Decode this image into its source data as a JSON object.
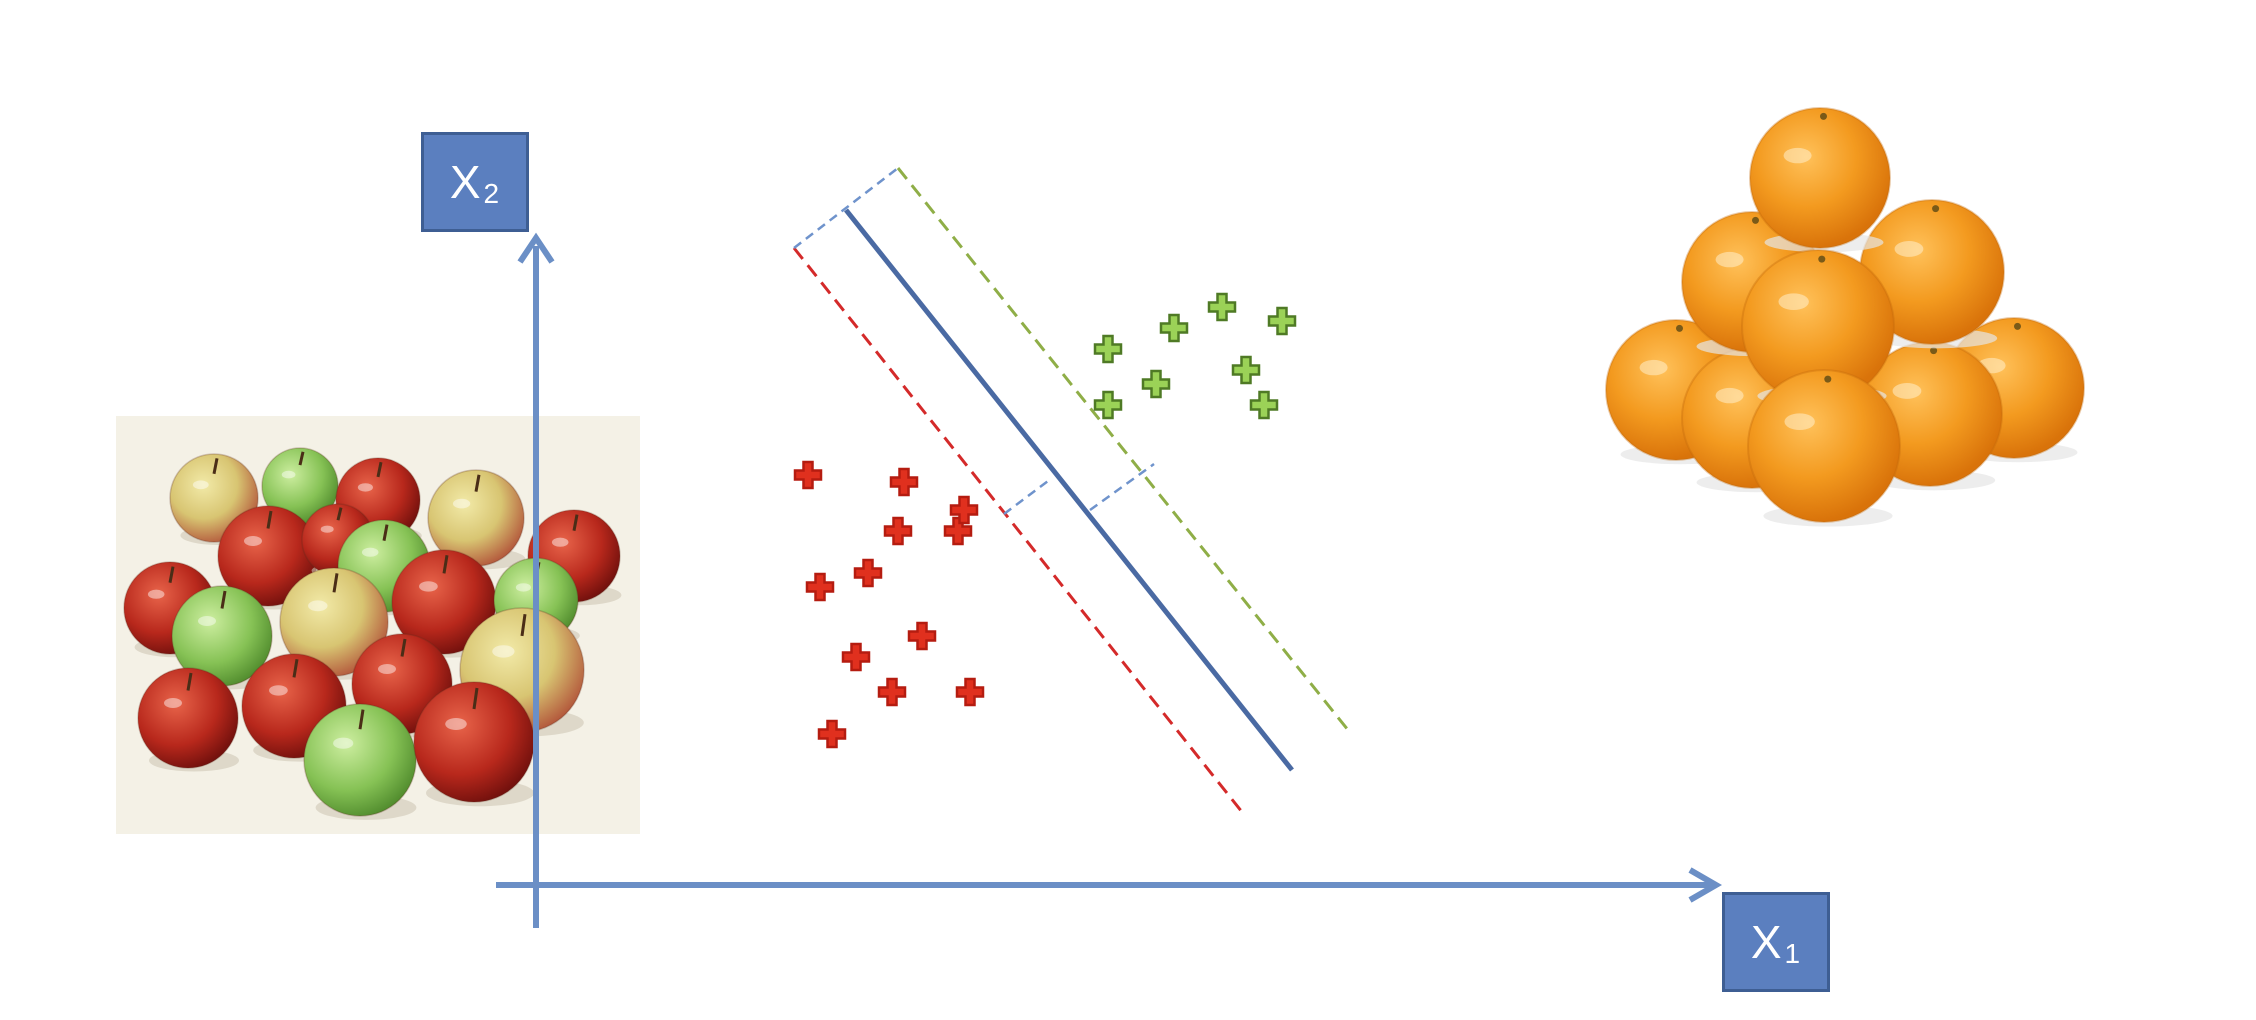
{
  "axes": {
    "x1": {
      "base": "X",
      "sub": "1"
    },
    "x2": {
      "base": "X",
      "sub": "2"
    }
  },
  "colors": {
    "axis": "#6b8fc6",
    "label_box": "#5b7fbf",
    "hyperplane": "#4a6aa3",
    "margin_red": "#d42a2a",
    "margin_green": "#8fae47",
    "connector": "#6f93cc",
    "red_point": "#e0301e",
    "green_point": "#9bd257"
  },
  "images": {
    "left": "apples-photo",
    "right": "oranges-pyramid-photo"
  },
  "points": {
    "red": [
      {
        "x": 1.2,
        "y": 1.8
      },
      {
        "x": 2.2,
        "y": 2.4
      },
      {
        "x": 3.5,
        "y": 2.4
      },
      {
        "x": 1.6,
        "y": 2.9
      },
      {
        "x": 2.7,
        "y": 3.2
      },
      {
        "x": 1.0,
        "y": 3.9
      },
      {
        "x": 1.8,
        "y": 4.1
      },
      {
        "x": 2.3,
        "y": 4.7
      },
      {
        "x": 3.3,
        "y": 4.7
      },
      {
        "x": 0.8,
        "y": 5.5
      },
      {
        "x": 2.4,
        "y": 5.4
      },
      {
        "x": 3.4,
        "y": 5.0
      }
    ],
    "green": [
      {
        "x": 5.8,
        "y": 7.3
      },
      {
        "x": 6.9,
        "y": 7.6
      },
      {
        "x": 7.7,
        "y": 7.9
      },
      {
        "x": 8.7,
        "y": 7.7
      },
      {
        "x": 6.6,
        "y": 6.8
      },
      {
        "x": 8.1,
        "y": 7.0
      },
      {
        "x": 5.8,
        "y": 6.5
      },
      {
        "x": 8.4,
        "y": 6.5
      }
    ]
  }
}
